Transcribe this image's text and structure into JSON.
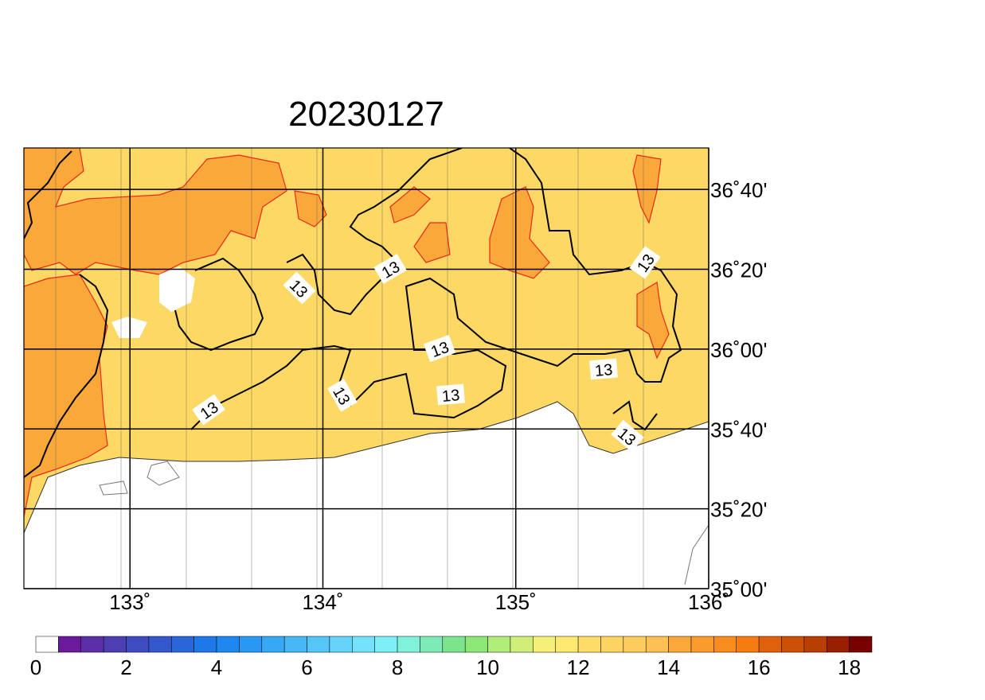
{
  "map": {
    "title": "20230127",
    "lon_range": [
      132.45,
      136.0
    ],
    "lat_range": [
      35.0,
      36.84
    ],
    "lon_ticks": [
      {
        "value": 133,
        "label": "133˚"
      },
      {
        "value": 134,
        "label": "134˚"
      },
      {
        "value": 135,
        "label": "135˚"
      },
      {
        "value": 136,
        "label": "136˚"
      }
    ],
    "lat_ticks": [
      {
        "value": 35.0,
        "label": "35˚00'"
      },
      {
        "value": 35.3333,
        "label": "35˚20'"
      },
      {
        "value": 35.6667,
        "label": "35˚40'"
      },
      {
        "value": 36.0,
        "label": "36˚00'"
      },
      {
        "value": 36.3333,
        "label": "36˚20'"
      },
      {
        "value": 36.6667,
        "label": "36˚40'"
      }
    ],
    "contour_labels": [
      "13",
      "13",
      "13",
      "13",
      "13",
      "13",
      "13",
      "13",
      "13"
    ],
    "colorbar": {
      "range": [
        0,
        18.5
      ],
      "step": 0.5,
      "ticks": [
        0,
        2,
        4,
        6,
        8,
        10,
        12,
        14,
        16,
        18
      ],
      "colors": [
        "#ffffff",
        "#6a1a9a",
        "#5b2fa6",
        "#4c3fb2",
        "#3f4cc0",
        "#3458cc",
        "#2a66d8",
        "#1f78e8",
        "#1e88f0",
        "#2898f2",
        "#36a8f4",
        "#46b8f6",
        "#56c6f8",
        "#66d4fa",
        "#74e2fb",
        "#7cf0f6",
        "#80f2dc",
        "#7eeab8",
        "#7ce48c",
        "#8ee878",
        "#b0ec78",
        "#d0ee78",
        "#f4f078",
        "#fde870",
        "#fddc68",
        "#fdd462",
        "#fccc5c",
        "#fcc054",
        "#fba83a",
        "#f99c2c",
        "#f88c1c",
        "#f47c10",
        "#e0600c",
        "#cc5006",
        "#b83e02",
        "#982000",
        "#780000"
      ]
    }
  }
}
